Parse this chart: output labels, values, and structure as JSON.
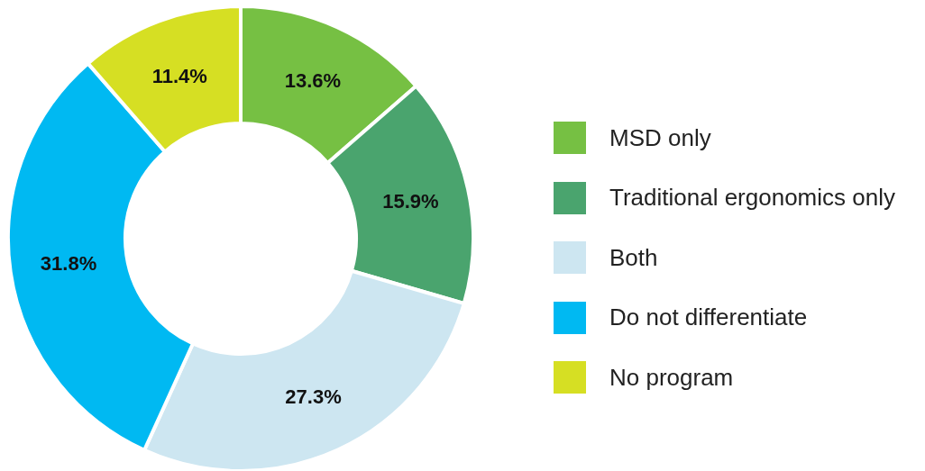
{
  "chart_data": {
    "type": "donut",
    "categories": [
      "MSD only",
      "Traditional ergonomics only",
      "Both",
      "Do not differentiate",
      "No program"
    ],
    "values": [
      13.6,
      15.9,
      27.3,
      31.8,
      11.4
    ],
    "value_labels": [
      "13.6%",
      "15.9%",
      "27.3%",
      "31.8%",
      "11.4%"
    ],
    "colors": [
      "#76c043",
      "#4aa46e",
      "#cde6f1",
      "#00b9f2",
      "#d6df23"
    ],
    "legend": "right"
  }
}
